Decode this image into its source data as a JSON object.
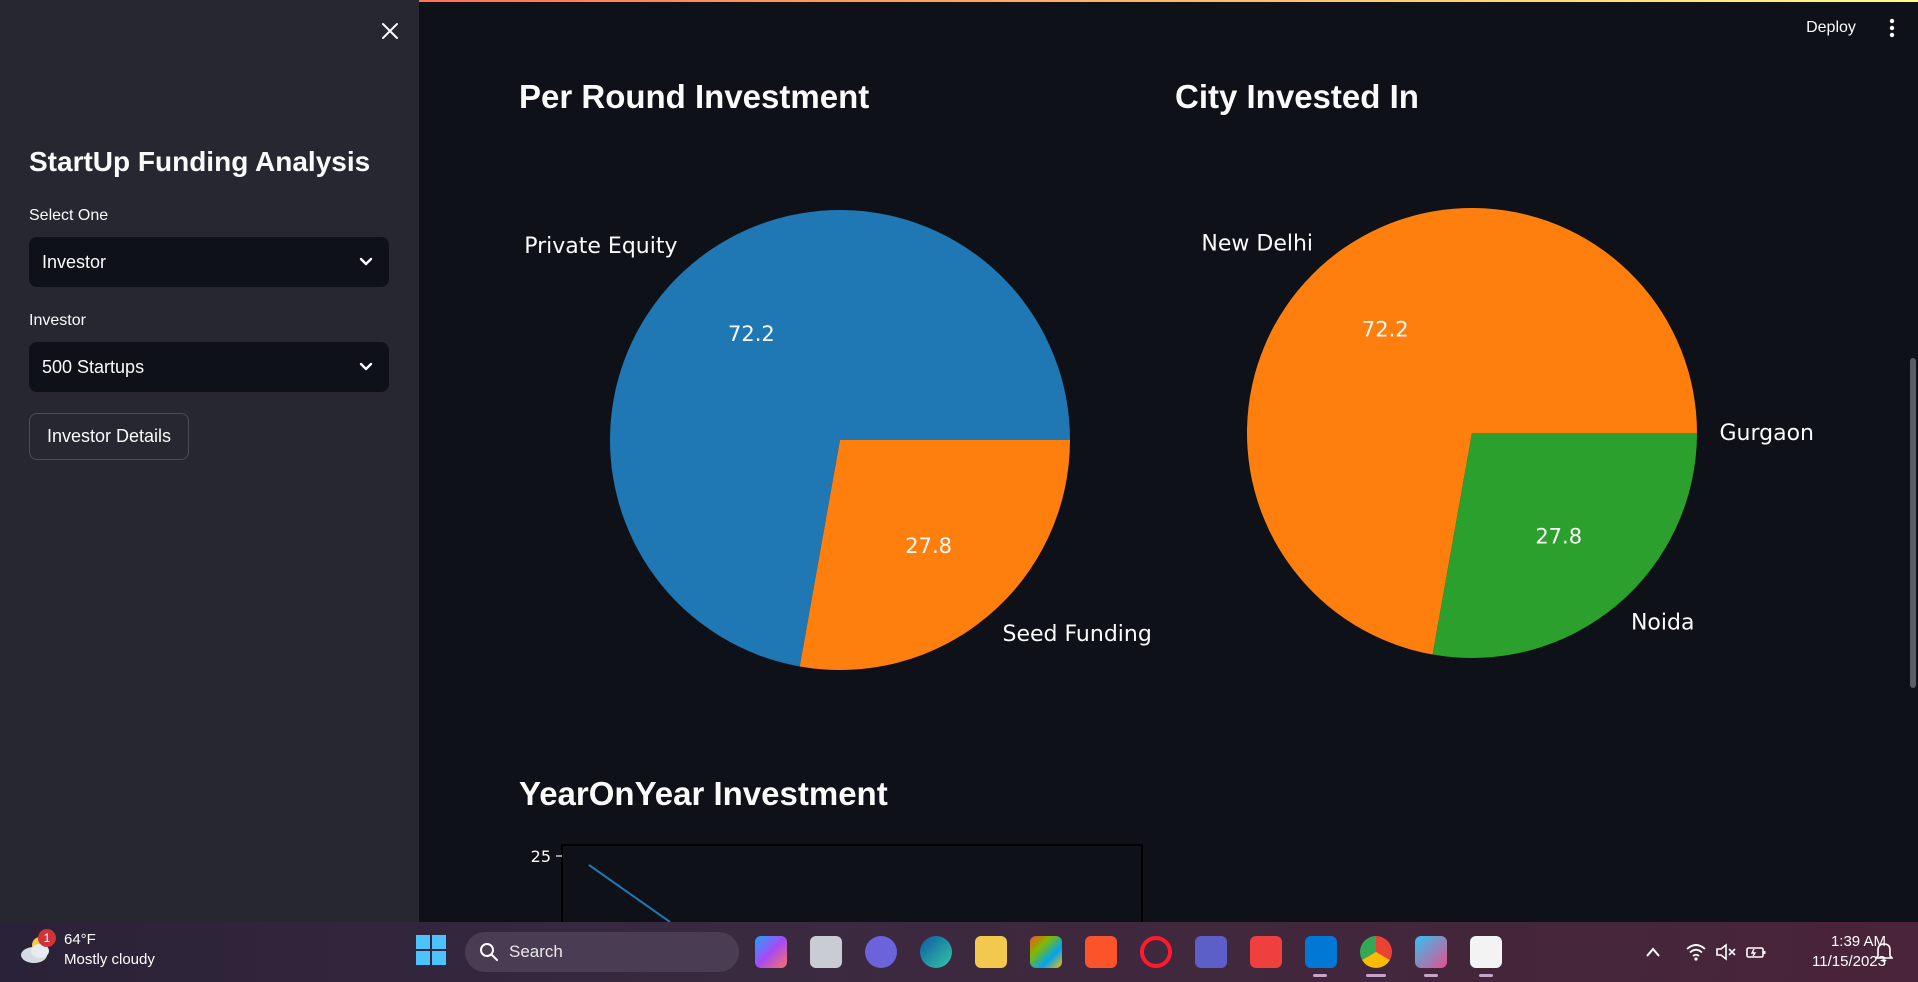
{
  "sidebar": {
    "title": "StartUp Funding Analysis",
    "select_label": "Select One",
    "select_value": "Investor",
    "investor_label": "Investor",
    "investor_value": "500 Startups",
    "details_button": "Investor Details"
  },
  "header": {
    "deploy_label": "Deploy"
  },
  "main": {
    "section1_title": "Per Round Investment",
    "section2_title": "City Invested In",
    "section3_title": "YearOnYear Investment"
  },
  "chart_data": [
    {
      "type": "pie",
      "title": "Per Round Investment",
      "labels": [
        "Private Equity",
        "Seed Funding"
      ],
      "values": [
        72.2,
        27.8
      ],
      "colors": [
        "#1f77b4",
        "#ff7f0e"
      ]
    },
    {
      "type": "pie",
      "title": "City Invested In",
      "labels": [
        "Gurgaon",
        "New Delhi",
        "Noida"
      ],
      "values": [
        0.0,
        72.2,
        27.8
      ],
      "colors": [
        "#1f77b4",
        "#ff7f0e",
        "#2ca02c"
      ]
    },
    {
      "type": "line",
      "title": "YearOnYear Investment",
      "y_tick_visible": "25",
      "colors": [
        "#1f77b4"
      ]
    }
  ],
  "taskbar": {
    "weather_temp": "64°F",
    "weather_desc": "Mostly cloudy",
    "weather_badge": "1",
    "search_label": "Search",
    "time": "1:39 AM",
    "date": "11/15/2023"
  }
}
